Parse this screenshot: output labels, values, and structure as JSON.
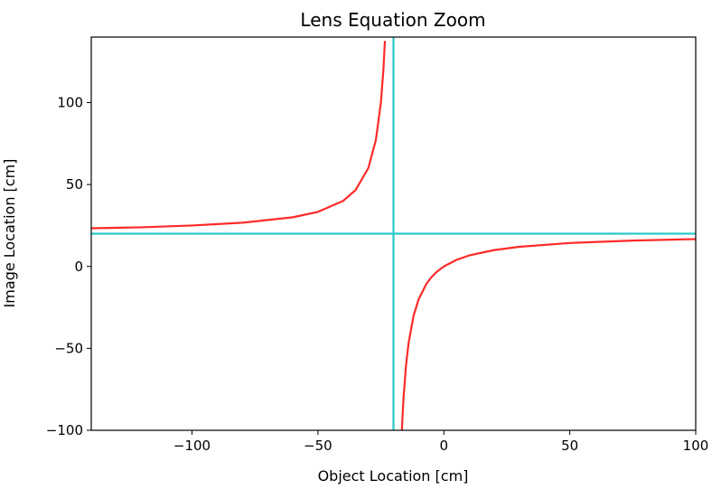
{
  "chart_data": {
    "type": "line",
    "title": "Lens Equation Zoom",
    "xlabel": "Object Location [cm]",
    "ylabel": "Image Location [cm]",
    "xlim": [
      -140,
      100
    ],
    "ylim": [
      -100,
      140
    ],
    "xticks": [
      -100,
      -50,
      0,
      50,
      100
    ],
    "xtick_labels": [
      "−100",
      "−50",
      "0",
      "50",
      "100"
    ],
    "yticks": [
      -100,
      -50,
      0,
      50,
      100
    ],
    "ytick_labels": [
      "−100",
      "−50",
      "0",
      "50",
      "100"
    ],
    "grid": false,
    "legend": "none",
    "series": [
      {
        "color": "#ff2a2a",
        "x": [
          -140,
          -120,
          -100,
          -80,
          -60,
          -50,
          -40,
          -35,
          -30,
          -27,
          -25,
          -24,
          -23.4
        ],
        "y": [
          23.3,
          23.9,
          25.0,
          26.7,
          30.0,
          33.3,
          40.0,
          46.7,
          60.0,
          77.1,
          100.0,
          120.0,
          137.6
        ]
      },
      {
        "color": "#ff2a2a",
        "x": [
          -17.2,
          -16.5,
          -16,
          -15,
          -14,
          -12,
          -10,
          -7,
          -5,
          -3,
          0,
          5,
          10,
          20,
          30,
          50,
          75,
          100
        ],
        "y": [
          -122.9,
          -94.3,
          -80.0,
          -60.0,
          -46.7,
          -30.0,
          -20.0,
          -10.8,
          -6.7,
          -3.5,
          0.0,
          4.0,
          6.7,
          10.0,
          12.0,
          14.3,
          15.8,
          16.7
        ]
      }
    ],
    "asymptotes": {
      "color": "#2ac9c9",
      "vertical_x": -20,
      "horizontal_y": 20
    }
  }
}
